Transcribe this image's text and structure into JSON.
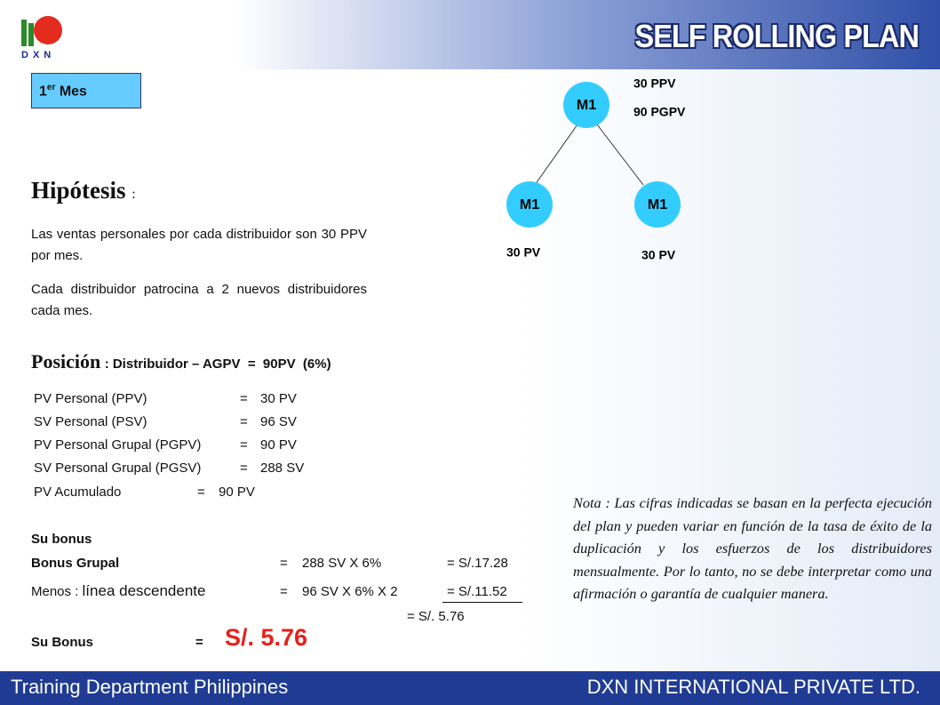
{
  "header": {
    "logo": "DXN",
    "title": "SELF ROLLING PLAN"
  },
  "month": {
    "number": "1",
    "suffix": "er",
    "label": "Mes"
  },
  "tree": {
    "top": {
      "label": "M1",
      "notes": [
        "30 PPV",
        "90 PGPV"
      ]
    },
    "children": [
      {
        "label": "M1",
        "note": "30 PV"
      },
      {
        "label": "M1",
        "note": "30 PV"
      }
    ]
  },
  "hypothesis": {
    "title": "Hipótesis",
    "colon": ":",
    "paragraphs": [
      "Las ventas personales por cada distribuidor son 30 PPV por mes.",
      "Cada distribuidor patrocina a 2 nuevos distribuidores cada mes."
    ]
  },
  "position": {
    "title": "Posición",
    "detail": ": Distribuidor – AGPV  =  90PV  (6%)"
  },
  "pv_rows": [
    [
      "PV Personal (PPV)",
      "=",
      "30 PV"
    ],
    [
      "SV Personal (PSV)",
      "=",
      "96 SV"
    ],
    [
      "PV Personal Grupal (PGPV)",
      "=",
      "90 PV"
    ],
    [
      "SV Personal Grupal (PGSV)",
      "=",
      "288 SV"
    ],
    [
      "PV Acumulado",
      "=",
      "90 PV"
    ]
  ],
  "bonus": {
    "heading": "Su bonus",
    "group": [
      "Bonus Grupal",
      "=",
      "288 SV X 6%",
      "= S/.17.28"
    ],
    "minus": [
      "Menos :",
      "línea descendente",
      "=",
      "96 SV X 6% X 2",
      "= S/.11.52"
    ],
    "subtotal": "= S/. 5.76",
    "total": [
      "Su Bonus",
      "=",
      "S/. 5.76"
    ]
  },
  "note": "Nota : Las cifras indicadas se basan en la perfecta ejecución del plan y pueden variar en función de la tasa de éxito de la duplicación y los esfuerzos de los distribuidores mensualmente. Por lo tanto, no se debe interpretar como una afirmación o garantía de cualquier manera.",
  "footer": {
    "left": "Training Department Philippines",
    "right": "DXN INTERNATIONAL PRIVATE LTD."
  }
}
